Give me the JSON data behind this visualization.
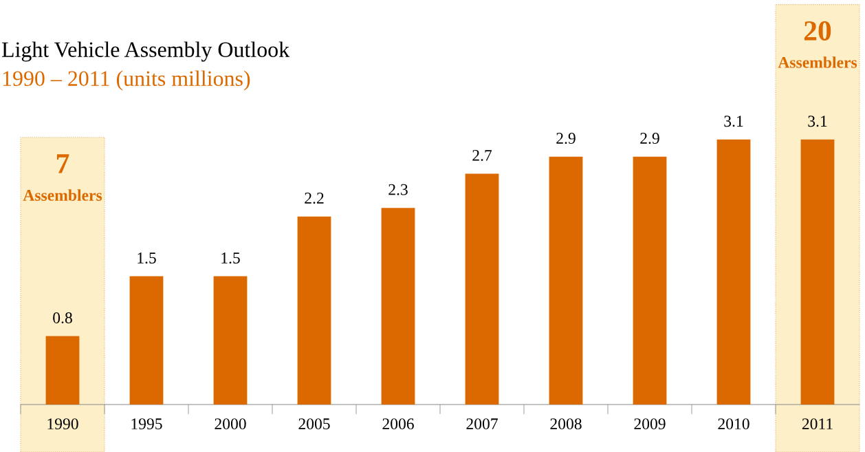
{
  "chart_data": {
    "type": "bar",
    "title": "Light Vehicle Assembly Outlook",
    "subtitle": "1990 – 2011 (units millions)",
    "categories": [
      "1990",
      "1995",
      "2000",
      "2005",
      "2006",
      "2007",
      "2008",
      "2009",
      "2010",
      "2011"
    ],
    "values": [
      0.8,
      1.5,
      1.5,
      2.2,
      2.3,
      2.7,
      2.9,
      2.9,
      3.1,
      3.1
    ],
    "color": "#dc6900",
    "data_labels": true,
    "grid": false,
    "legend": false,
    "bands": [
      {
        "axis": "x",
        "from": "1990",
        "to": "1990",
        "label": "7 Assemblers",
        "color": "#fdefc8"
      },
      {
        "axis": "x",
        "from": "2011",
        "to": "2011",
        "label": "20 Assemblers",
        "color": "#fdefc8"
      }
    ]
  }
}
